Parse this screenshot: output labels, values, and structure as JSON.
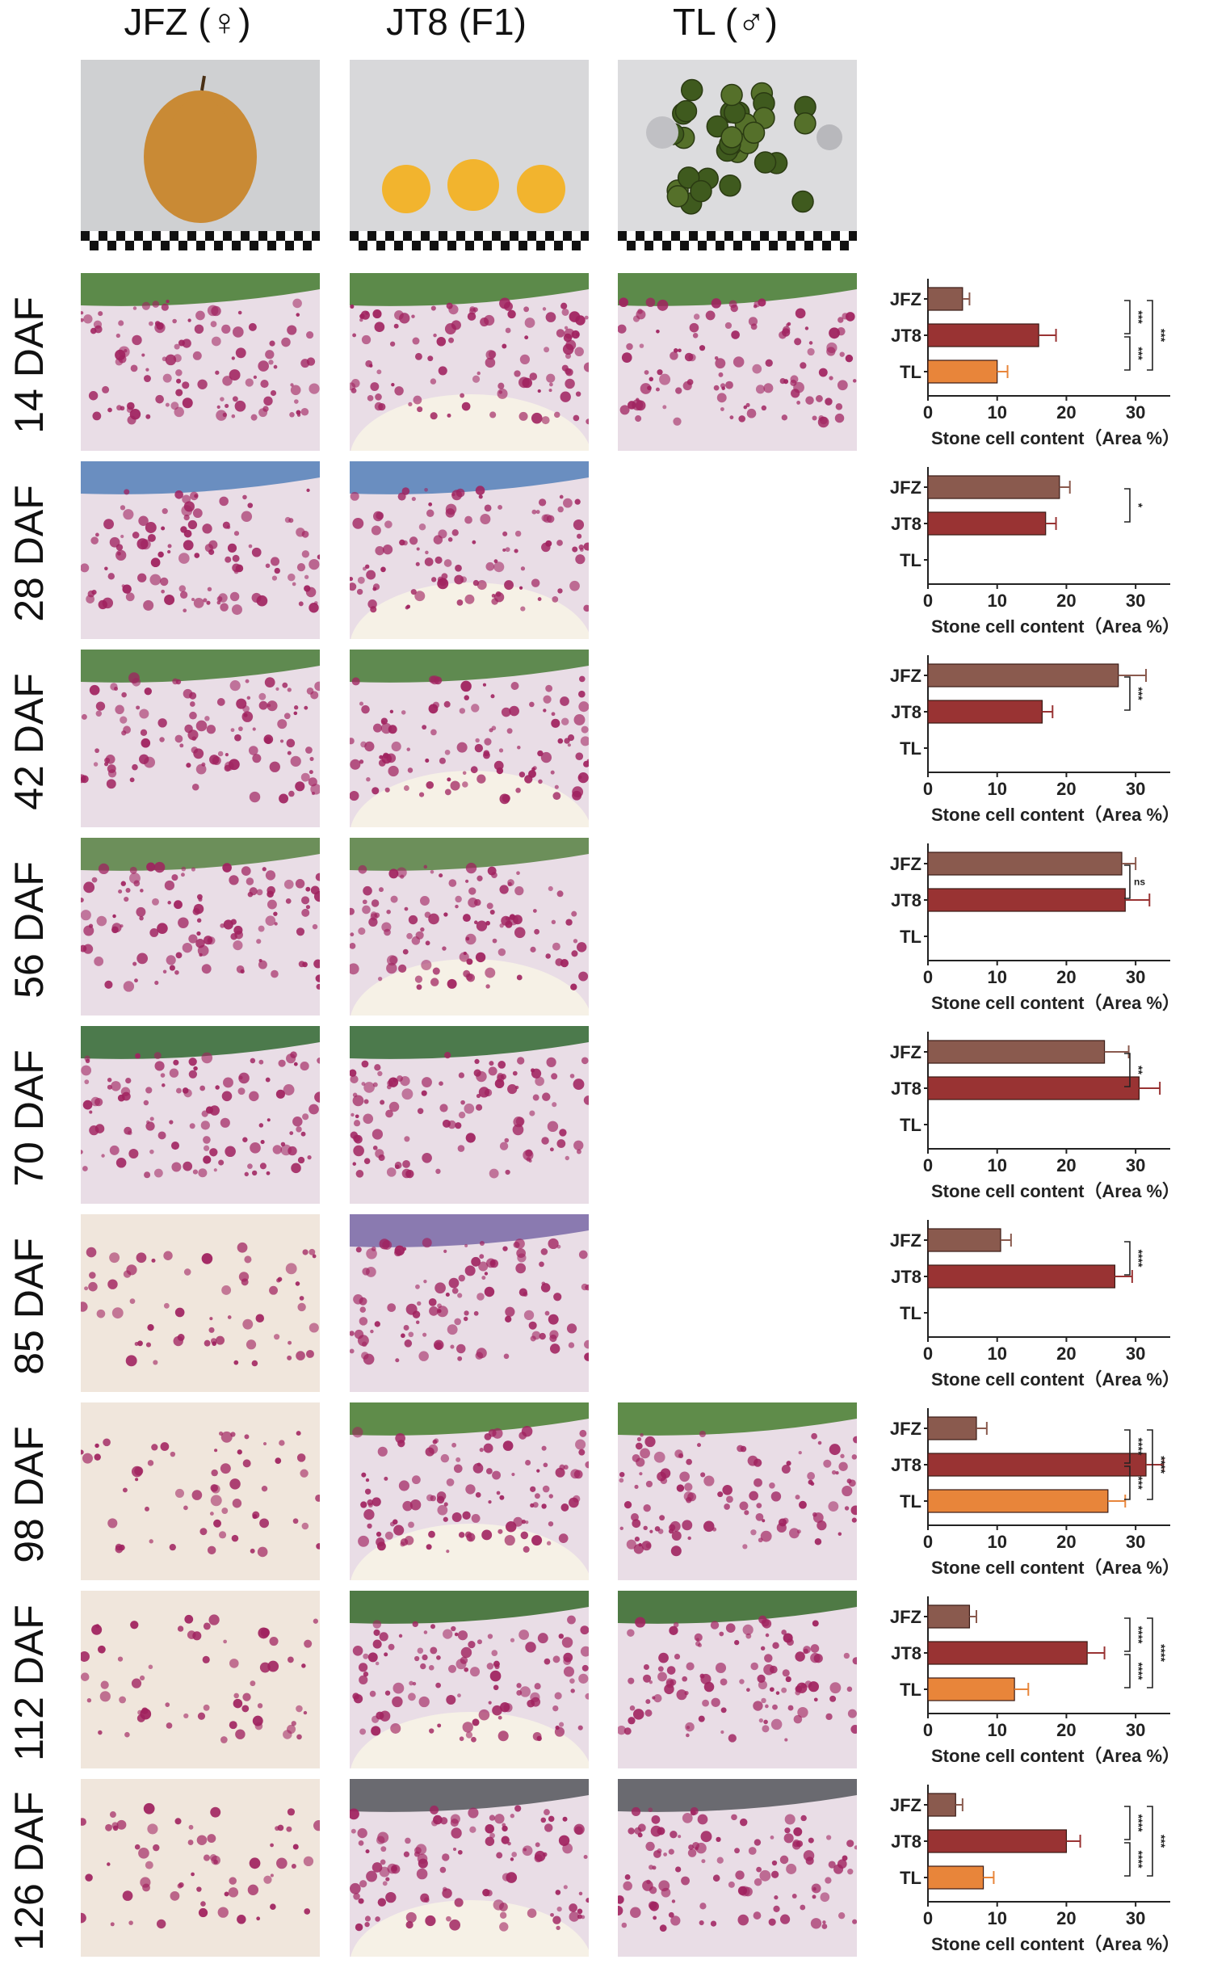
{
  "columns": [
    "JFZ (♀)",
    "JT8 (F1)",
    "TL (♂)"
  ],
  "rows": [
    "14 DAF",
    "28 DAF",
    "42 DAF",
    "56 DAF",
    "70 DAF",
    "85 DAF",
    "98 DAF",
    "112 DAF",
    "126 DAF"
  ],
  "colors": {
    "JFZ": "#8a5a4e",
    "JT8": "#993333",
    "TL": "#e8853a",
    "stain": "#a0225f"
  },
  "chart_data": [
    {
      "type": "bar",
      "title": "",
      "panel": "14 DAF",
      "categories": [
        "JFZ",
        "JT8",
        "TL"
      ],
      "values": [
        5,
        16,
        10
      ],
      "errors": [
        1,
        2.5,
        1.5
      ],
      "xlabel": "Stone cell content（Area %）",
      "xlim": [
        0,
        35
      ],
      "xticks": [
        0,
        10,
        20,
        30
      ],
      "annotations": [
        {
          "pair": [
            "JFZ",
            "JT8"
          ],
          "text": "***"
        },
        {
          "pair": [
            "JT8",
            "TL"
          ],
          "text": "***"
        },
        {
          "pair": [
            "JFZ",
            "TL"
          ],
          "text": "***"
        }
      ]
    },
    {
      "type": "bar",
      "title": "",
      "panel": "28 DAF",
      "categories": [
        "JFZ",
        "JT8",
        "TL"
      ],
      "values": [
        19,
        17,
        null
      ],
      "errors": [
        1.5,
        1.5,
        null
      ],
      "xlabel": "Stone cell content（Area %）",
      "xlim": [
        0,
        35
      ],
      "xticks": [
        0,
        10,
        20,
        30
      ],
      "annotations": [
        {
          "pair": [
            "JFZ",
            "JT8"
          ],
          "text": "*"
        }
      ]
    },
    {
      "type": "bar",
      "title": "",
      "panel": "42 DAF",
      "categories": [
        "JFZ",
        "JT8",
        "TL"
      ],
      "values": [
        27.5,
        16.5,
        null
      ],
      "errors": [
        4,
        1.5,
        null
      ],
      "xlabel": "Stone cell content（Area %）",
      "xlim": [
        0,
        35
      ],
      "xticks": [
        0,
        10,
        20,
        30
      ],
      "annotations": [
        {
          "pair": [
            "JFZ",
            "JT8"
          ],
          "text": "***"
        }
      ]
    },
    {
      "type": "bar",
      "title": "",
      "panel": "56 DAF",
      "categories": [
        "JFZ",
        "JT8",
        "TL"
      ],
      "values": [
        28,
        28.5,
        null
      ],
      "errors": [
        2,
        3.5,
        null
      ],
      "xlabel": "Stone cell content（Area %）",
      "xlim": [
        0,
        35
      ],
      "xticks": [
        0,
        10,
        20,
        30
      ],
      "annotations": [
        {
          "pair": [
            "JFZ",
            "JT8"
          ],
          "text": "ns"
        }
      ]
    },
    {
      "type": "bar",
      "title": "",
      "panel": "70 DAF",
      "categories": [
        "JFZ",
        "JT8",
        "TL"
      ],
      "values": [
        25.5,
        30.5,
        null
      ],
      "errors": [
        3.5,
        3,
        null
      ],
      "xlabel": "Stone cell content（Area %）",
      "xlim": [
        0,
        35
      ],
      "xticks": [
        0,
        10,
        20,
        30
      ],
      "annotations": [
        {
          "pair": [
            "JFZ",
            "JT8"
          ],
          "text": "**"
        }
      ]
    },
    {
      "type": "bar",
      "title": "",
      "panel": "85 DAF",
      "categories": [
        "JFZ",
        "JT8",
        "TL"
      ],
      "values": [
        10.5,
        27,
        null
      ],
      "errors": [
        1.5,
        2.5,
        null
      ],
      "xlabel": "Stone cell content（Area %）",
      "xlim": [
        0,
        35
      ],
      "xticks": [
        0,
        10,
        20,
        30
      ],
      "annotations": [
        {
          "pair": [
            "JFZ",
            "JT8"
          ],
          "text": "****"
        }
      ]
    },
    {
      "type": "bar",
      "title": "",
      "panel": "98 DAF",
      "categories": [
        "JFZ",
        "JT8",
        "TL"
      ],
      "values": [
        7,
        31.5,
        26
      ],
      "errors": [
        1.5,
        2.5,
        2.5
      ],
      "xlabel": "Stone cell content（Area %）",
      "xlim": [
        0,
        35
      ],
      "xticks": [
        0,
        10,
        20,
        30
      ],
      "annotations": [
        {
          "pair": [
            "JFZ",
            "JT8"
          ],
          "text": "****"
        },
        {
          "pair": [
            "JT8",
            "TL"
          ],
          "text": "***"
        },
        {
          "pair": [
            "JFZ",
            "TL"
          ],
          "text": "****"
        }
      ]
    },
    {
      "type": "bar",
      "title": "",
      "panel": "112 DAF",
      "categories": [
        "JFZ",
        "JT8",
        "TL"
      ],
      "values": [
        6,
        23,
        12.5
      ],
      "errors": [
        1,
        2.5,
        2
      ],
      " xlabel": "Stone cell content（Area %）",
      "xlabel": "Stone cell content（Area %）",
      "xlim": [
        0,
        35
      ],
      "xticks": [
        0,
        10,
        20,
        30
      ],
      "annotations": [
        {
          "pair": [
            "JFZ",
            "JT8"
          ],
          "text": "****"
        },
        {
          "pair": [
            "JT8",
            "TL"
          ],
          "text": "****"
        },
        {
          "pair": [
            "JFZ",
            "TL"
          ],
          "text": "****"
        }
      ]
    },
    {
      "type": "bar",
      "title": "",
      "panel": "126 DAF",
      "categories": [
        "JFZ",
        "JT8",
        "TL"
      ],
      "values": [
        4,
        20,
        8
      ],
      "errors": [
        1,
        2,
        1.5
      ],
      "xlabel": "Stone cell content（Area %）",
      "xlim": [
        0,
        35
      ],
      "xticks": [
        0,
        10,
        20,
        30
      ],
      "annotations": [
        {
          "pair": [
            "JFZ",
            "JT8"
          ],
          "text": "****"
        },
        {
          "pair": [
            "JT8",
            "TL"
          ],
          "text": "****"
        },
        {
          "pair": [
            "JFZ",
            "TL"
          ],
          "text": "***"
        }
      ]
    }
  ]
}
